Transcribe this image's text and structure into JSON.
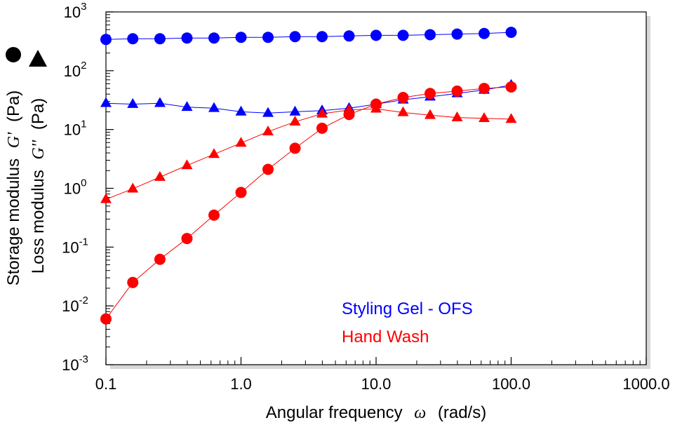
{
  "chart_data": {
    "type": "scatter",
    "x_scale": "log",
    "y_scale": "log",
    "xlim": [
      0.1,
      1000
    ],
    "ylim": [
      0.001,
      1000
    ],
    "grid": false,
    "legend_placement": "lower-center",
    "xlabel_text": "Angular frequency",
    "xlabel_symbol": "ω",
    "xlabel_units": "(rad/s)",
    "ylabel_outer": {
      "text": "Storage modulus",
      "symbol": "G'",
      "units": "(Pa)"
    },
    "ylabel_inner": {
      "text": "Loss modulus",
      "symbol": "G''",
      "units": "(Pa)"
    },
    "x_ticks": [
      {
        "value": 0.1,
        "label": "0.1"
      },
      {
        "value": 1,
        "label": "1.0"
      },
      {
        "value": 10,
        "label": "10.0"
      },
      {
        "value": 100,
        "label": "100.0"
      },
      {
        "value": 1000,
        "label": "1000.0"
      }
    ],
    "y_ticks": [
      {
        "value": 0.001,
        "base": "10",
        "exp": "-3"
      },
      {
        "value": 0.01,
        "base": "10",
        "exp": "-2"
      },
      {
        "value": 0.1,
        "base": "10",
        "exp": "-1"
      },
      {
        "value": 1,
        "base": "10",
        "exp": "0"
      },
      {
        "value": 10,
        "base": "10",
        "exp": "1"
      },
      {
        "value": 100,
        "base": "10",
        "exp": "2"
      },
      {
        "value": 1000,
        "base": "10",
        "exp": "3"
      }
    ],
    "x": [
      0.1,
      0.158,
      0.251,
      0.398,
      0.631,
      1.0,
      1.585,
      2.512,
      3.981,
      6.31,
      10.0,
      15.85,
      25.12,
      39.81,
      63.1,
      100.0
    ],
    "series": [
      {
        "name": "Styling Gel - OFS",
        "color": "#0000ff",
        "modulus": "G'",
        "marker": "circle",
        "values": [
          340,
          350,
          350,
          360,
          360,
          370,
          370,
          380,
          380,
          390,
          400,
          400,
          410,
          420,
          430,
          450
        ]
      },
      {
        "name": "Styling Gel - OFS",
        "color": "#0000ff",
        "modulus": "G''",
        "marker": "triangle",
        "values": [
          28,
          27,
          28,
          24,
          23,
          20,
          19,
          20,
          21,
          23,
          27,
          32,
          36,
          41,
          47,
          57
        ]
      },
      {
        "name": "Hand Wash",
        "color": "#ff0000",
        "modulus": "G'",
        "marker": "circle",
        "values": [
          0.006,
          0.025,
          0.062,
          0.14,
          0.35,
          0.85,
          2.1,
          4.8,
          10.5,
          18,
          27,
          35,
          41,
          45,
          50,
          53
        ]
      },
      {
        "name": "Hand Wash",
        "color": "#ff0000",
        "modulus": "G''",
        "marker": "triangle",
        "values": [
          0.65,
          0.98,
          1.55,
          2.45,
          3.8,
          5.9,
          9.2,
          13.5,
          18.5,
          21.5,
          22.5,
          19.5,
          17.5,
          16,
          15.5,
          15
        ]
      }
    ],
    "legend": [
      {
        "label": "Styling Gel - OFS",
        "color": "#0000ff"
      },
      {
        "label": "Hand Wash",
        "color": "#ff0000"
      }
    ]
  }
}
